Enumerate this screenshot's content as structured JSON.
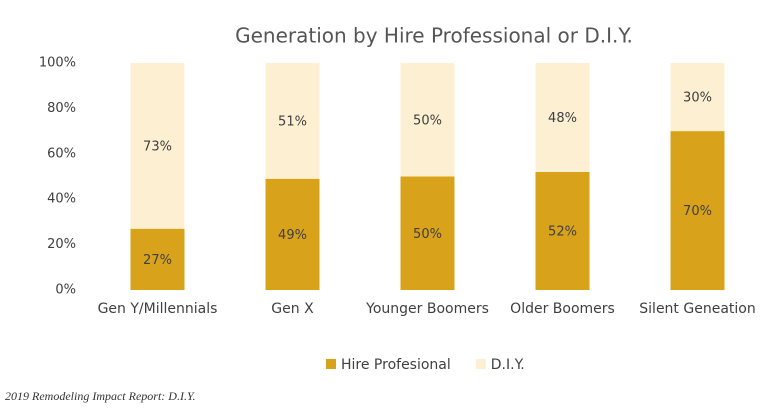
{
  "chart_data": {
    "type": "stacked_bar",
    "title": "Generation by Hire Professional or D.I.Y.",
    "categories": [
      "Gen Y/Millennials",
      "Gen X",
      "Younger Boomers",
      "Older Boomers",
      "Silent Geneation"
    ],
    "series": [
      {
        "name": "Hire Profesional",
        "color": "#d9a21b",
        "values": [
          27,
          49,
          50,
          52,
          70
        ],
        "value_labels": [
          "27%",
          "49%",
          "50%",
          "52%",
          "70%"
        ]
      },
      {
        "name": "D.I.Y.",
        "color": "#fdf0d2",
        "values": [
          73,
          51,
          50,
          48,
          30
        ],
        "value_labels": [
          "73%",
          "51%",
          "50%",
          "48%",
          "30%"
        ]
      }
    ],
    "ylim": [
      0,
      100
    ],
    "yticks": [
      {
        "value": 0,
        "label": "0%"
      },
      {
        "value": 20,
        "label": "20%"
      },
      {
        "value": 40,
        "label": "40%"
      },
      {
        "value": 60,
        "label": "60%"
      },
      {
        "value": 80,
        "label": "80%"
      },
      {
        "value": 100,
        "label": "100%"
      }
    ],
    "grid": false,
    "legend": "bottom",
    "source": "2019 Remodeling Impact Report: D.I.Y."
  }
}
